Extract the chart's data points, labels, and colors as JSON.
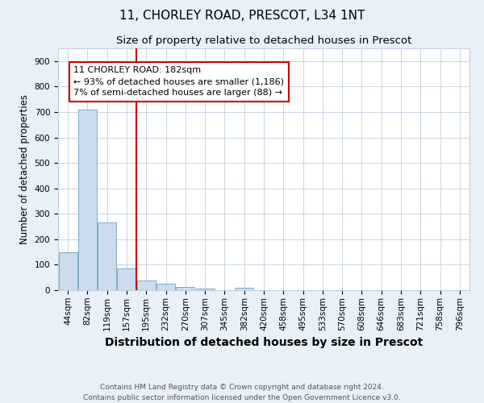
{
  "title_line1": "11, CHORLEY ROAD, PRESCOT, L34 1NT",
  "title_line2": "Size of property relative to detached houses in Prescot",
  "xlabel": "Distribution of detached houses by size in Prescot",
  "ylabel": "Number of detached properties",
  "categories": [
    "44sqm",
    "82sqm",
    "119sqm",
    "157sqm",
    "195sqm",
    "232sqm",
    "270sqm",
    "307sqm",
    "345sqm",
    "382sqm",
    "420sqm",
    "458sqm",
    "495sqm",
    "533sqm",
    "570sqm",
    "608sqm",
    "646sqm",
    "683sqm",
    "721sqm",
    "758sqm",
    "796sqm"
  ],
  "values": [
    150,
    710,
    265,
    85,
    38,
    25,
    12,
    7,
    0,
    10,
    0,
    0,
    0,
    0,
    0,
    0,
    0,
    0,
    0,
    0,
    0
  ],
  "bar_color": "#ccdcee",
  "bar_edge_color": "#7aaac8",
  "vline_position": 3.5,
  "vline_color": "#cc0000",
  "annotation_box_text": "11 CHORLEY ROAD: 182sqm\n← 93% of detached houses are smaller (1,186)\n7% of semi-detached houses are larger (88) →",
  "annotation_box_color": "#cc0000",
  "annotation_box_facecolor": "white",
  "ylim": [
    0,
    950
  ],
  "yticks": [
    0,
    100,
    200,
    300,
    400,
    500,
    600,
    700,
    800,
    900
  ],
  "footnote": "Contains HM Land Registry data © Crown copyright and database right 2024.\nContains public sector information licensed under the Open Government Licence v3.0.",
  "background_color": "#e8f0f8",
  "plot_bg_color": "white",
  "title_fontsize": 11,
  "subtitle_fontsize": 9.5,
  "xlabel_fontsize": 10,
  "ylabel_fontsize": 8.5,
  "tick_fontsize": 7.5,
  "footnote_fontsize": 6.5,
  "grid_color": "#c0cfe0"
}
